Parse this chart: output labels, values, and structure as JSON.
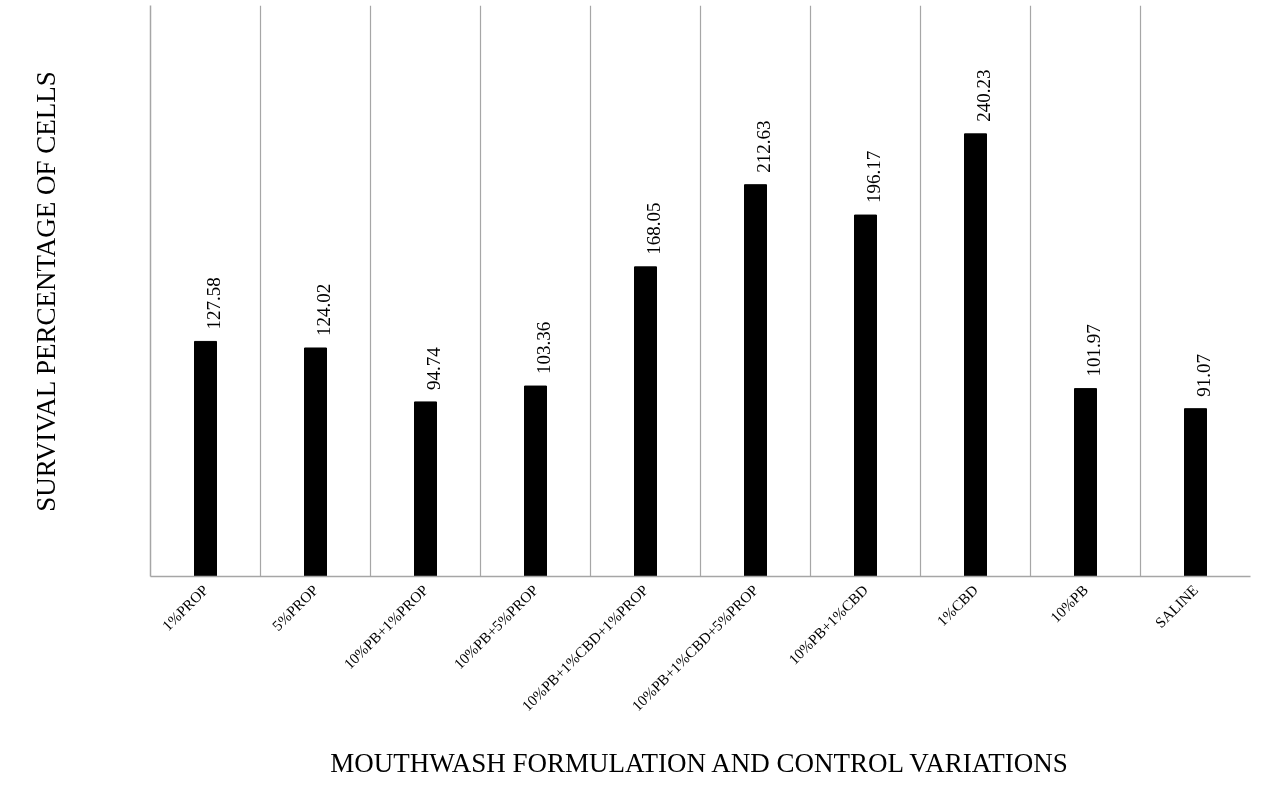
{
  "chart_data": {
    "type": "bar",
    "xlabel": "MOUTHWASH FORMULATION AND CONTROL VARIATIONS",
    "ylabel": "SURVIVAL PERCENTAGE OF CELLS",
    "categories": [
      "1%PROP",
      "5%PROP",
      "10%PB+1%PROP",
      "10%PB+5%PROP",
      "10%PB+1%CBD+1%PROP",
      "10%PB+1%CBD+5%PROP",
      "10%PB+1%CBD",
      "1%CBD",
      "10%PB",
      "SALINE"
    ],
    "values": [
      127.58,
      124.02,
      94.74,
      103.36,
      168.05,
      212.63,
      196.17,
      240.23,
      101.97,
      91.07
    ],
    "color": "#000000",
    "data_labels": true,
    "grid": "x"
  }
}
